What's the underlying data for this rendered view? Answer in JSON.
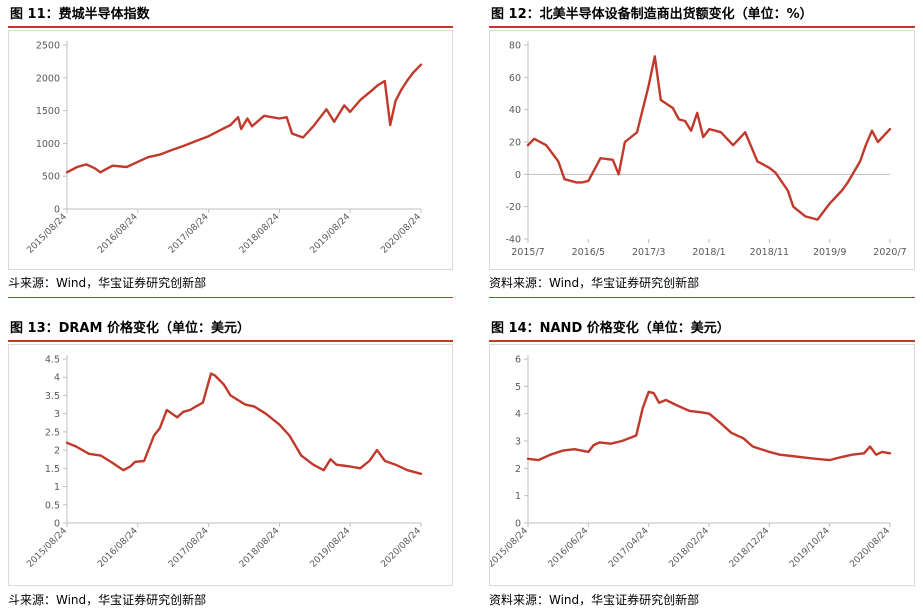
{
  "colors": {
    "accent": "#c0392b",
    "line": "#c0392b",
    "axis": "#bfbfbf",
    "tick_text": "#595959"
  },
  "source_label_a": "斗来源：Wind，华宝证券研究创新部",
  "source_label_b": "资料来源：Wind，华宝证券研究创新部",
  "chart_data": [
    {
      "id": "fig11",
      "type": "line",
      "title": "图 11：费城半导体指数",
      "ylim": [
        0,
        2500
      ],
      "yticks": [
        0,
        500,
        1000,
        1500,
        2000,
        2500
      ],
      "xlim": [
        "2015-08-24",
        "2020-08-24"
      ],
      "xtick_labels": [
        "2015/08/24",
        "2016/08/24",
        "2017/08/24",
        "2018/08/24",
        "2019/08/24",
        "2020/08/24"
      ],
      "x": [
        "2015-08-24",
        "2015-10-15",
        "2015-12-01",
        "2016-01-15",
        "2016-02-12",
        "2016-04-15",
        "2016-06-27",
        "2016-08-24",
        "2016-10-15",
        "2016-12-15",
        "2017-02-15",
        "2017-04-15",
        "2017-06-15",
        "2017-08-24",
        "2017-10-15",
        "2017-12-15",
        "2018-01-23",
        "2018-02-08",
        "2018-03-12",
        "2018-04-05",
        "2018-06-06",
        "2018-08-24",
        "2018-10-01",
        "2018-10-29",
        "2018-12-24",
        "2019-02-15",
        "2019-04-24",
        "2019-06-03",
        "2019-07-25",
        "2019-08-24",
        "2019-10-15",
        "2019-12-15",
        "2020-01-15",
        "2020-02-19",
        "2020-03-18",
        "2020-04-15",
        "2020-05-15",
        "2020-06-15",
        "2020-07-15",
        "2020-08-24"
      ],
      "series": [
        {
          "values": [
            560,
            640,
            680,
            620,
            560,
            660,
            640,
            720,
            790,
            830,
            900,
            960,
            1030,
            1110,
            1190,
            1280,
            1400,
            1220,
            1380,
            1260,
            1420,
            1380,
            1400,
            1150,
            1090,
            1260,
            1520,
            1330,
            1580,
            1480,
            1660,
            1810,
            1890,
            1950,
            1280,
            1650,
            1820,
            1960,
            2080,
            2200
          ]
        }
      ]
    },
    {
      "id": "fig12",
      "type": "line",
      "title": "图 12：北美半导体设备制造商出货额变化（单位：%）",
      "ylim": [
        -40,
        80
      ],
      "yticks": [
        -40,
        -20,
        0,
        20,
        40,
        60,
        80
      ],
      "xlim": [
        "2015-07",
        "2020-07"
      ],
      "xtick_labels": [
        "2015/7",
        "2016/5",
        "2017/3",
        "2018/1",
        "2018/11",
        "2019/9",
        "2020/7"
      ],
      "x": [
        "2015-07",
        "2015-08",
        "2015-10",
        "2015-12",
        "2016-01",
        "2016-03",
        "2016-04",
        "2016-05",
        "2016-07",
        "2016-09",
        "2016-10",
        "2016-11",
        "2017-01",
        "2017-03",
        "2017-04",
        "2017-05",
        "2017-07",
        "2017-08",
        "2017-09",
        "2017-10",
        "2017-11",
        "2017-12",
        "2018-01",
        "2018-02",
        "2018-03",
        "2018-05",
        "2018-07",
        "2018-09",
        "2018-11",
        "2018-12",
        "2019-02",
        "2019-03",
        "2019-05",
        "2019-07",
        "2019-09",
        "2019-11",
        "2019-12",
        "2020-02",
        "2020-03",
        "2020-04",
        "2020-05",
        "2020-07"
      ],
      "series": [
        {
          "values": [
            18,
            22,
            18,
            8,
            -3,
            -5,
            -5,
            -4,
            10,
            9,
            0,
            20,
            26,
            55,
            73,
            46,
            41,
            34,
            33,
            27,
            38,
            23,
            28,
            27,
            26,
            18,
            26,
            8,
            4,
            1,
            -10,
            -20,
            -26,
            -28,
            -18,
            -10,
            -5,
            8,
            18,
            27,
            20,
            28
          ]
        }
      ]
    },
    {
      "id": "fig13",
      "type": "line",
      "title": "图 13：DRAM 价格变化（单位：美元）",
      "ylim": [
        0,
        4.5
      ],
      "yticks": [
        0,
        0.5,
        1,
        1.5,
        2,
        2.5,
        3,
        3.5,
        4,
        4.5
      ],
      "xlim": [
        "2015-08-24",
        "2020-08-24"
      ],
      "xtick_labels": [
        "2015/08/24",
        "2016/08/24",
        "2017/08/24",
        "2018/08/24",
        "2019/08/24",
        "2020/08/24"
      ],
      "x": [
        "2015-08-24",
        "2015-10-10",
        "2015-12-15",
        "2016-02-15",
        "2016-04-15",
        "2016-06-10",
        "2016-07-15",
        "2016-08-10",
        "2016-09-25",
        "2016-11-15",
        "2016-12-15",
        "2017-01-20",
        "2017-03-15",
        "2017-04-15",
        "2017-05-20",
        "2017-06-20",
        "2017-07-25",
        "2017-09-05",
        "2017-09-25",
        "2017-11-10",
        "2017-12-15",
        "2018-01-15",
        "2018-03-01",
        "2018-04-15",
        "2018-06-15",
        "2018-08-24",
        "2018-10-15",
        "2018-12-15",
        "2019-02-15",
        "2019-04-10",
        "2019-05-15",
        "2019-06-15",
        "2019-08-24",
        "2019-10-15",
        "2019-12-01",
        "2020-01-10",
        "2020-02-20",
        "2020-04-15",
        "2020-06-15",
        "2020-08-24"
      ],
      "series": [
        {
          "values": [
            2.2,
            2.1,
            1.9,
            1.85,
            1.65,
            1.45,
            1.55,
            1.68,
            1.7,
            2.4,
            2.6,
            3.1,
            2.9,
            3.05,
            3.1,
            3.2,
            3.3,
            4.1,
            4.05,
            3.8,
            3.5,
            3.4,
            3.25,
            3.2,
            3.0,
            2.7,
            2.4,
            1.85,
            1.6,
            1.45,
            1.75,
            1.6,
            1.55,
            1.5,
            1.7,
            2.0,
            1.7,
            1.6,
            1.45,
            1.35
          ]
        }
      ]
    },
    {
      "id": "fig14",
      "type": "line",
      "title": "图 14：NAND 价格变化（单位：美元）",
      "ylim": [
        0,
        6
      ],
      "yticks": [
        0,
        1,
        2,
        3,
        4,
        5,
        6
      ],
      "xlim": [
        "2015-08-24",
        "2020-08-24"
      ],
      "xtick_labels": [
        "2015/08/24",
        "2016/06/24",
        "2017/04/24",
        "2018/02/24",
        "2018/12/24",
        "2019/10/24",
        "2020/08/24"
      ],
      "x": [
        "2015-08-24",
        "2015-10-15",
        "2015-12-15",
        "2016-02-15",
        "2016-04-15",
        "2016-06-24",
        "2016-07-20",
        "2016-08-20",
        "2016-10-15",
        "2016-12-10",
        "2017-01-15",
        "2017-02-20",
        "2017-03-25",
        "2017-04-24",
        "2017-05-20",
        "2017-06-15",
        "2017-07-20",
        "2017-09-15",
        "2017-11-15",
        "2018-01-15",
        "2018-02-24",
        "2018-04-15",
        "2018-06-15",
        "2018-08-15",
        "2018-10-01",
        "2018-12-24",
        "2019-02-15",
        "2019-04-15",
        "2019-06-15",
        "2019-08-15",
        "2019-10-24",
        "2019-12-15",
        "2020-02-15",
        "2020-04-15",
        "2020-05-15",
        "2020-06-15",
        "2020-07-15",
        "2020-08-24"
      ],
      "series": [
        {
          "values": [
            2.35,
            2.3,
            2.5,
            2.65,
            2.7,
            2.6,
            2.85,
            2.95,
            2.9,
            3.0,
            3.1,
            3.2,
            4.2,
            4.8,
            4.75,
            4.4,
            4.5,
            4.3,
            4.1,
            4.05,
            4.0,
            3.7,
            3.3,
            3.1,
            2.8,
            2.6,
            2.5,
            2.45,
            2.4,
            2.35,
            2.3,
            2.4,
            2.5,
            2.55,
            2.8,
            2.5,
            2.6,
            2.55
          ]
        }
      ]
    }
  ]
}
